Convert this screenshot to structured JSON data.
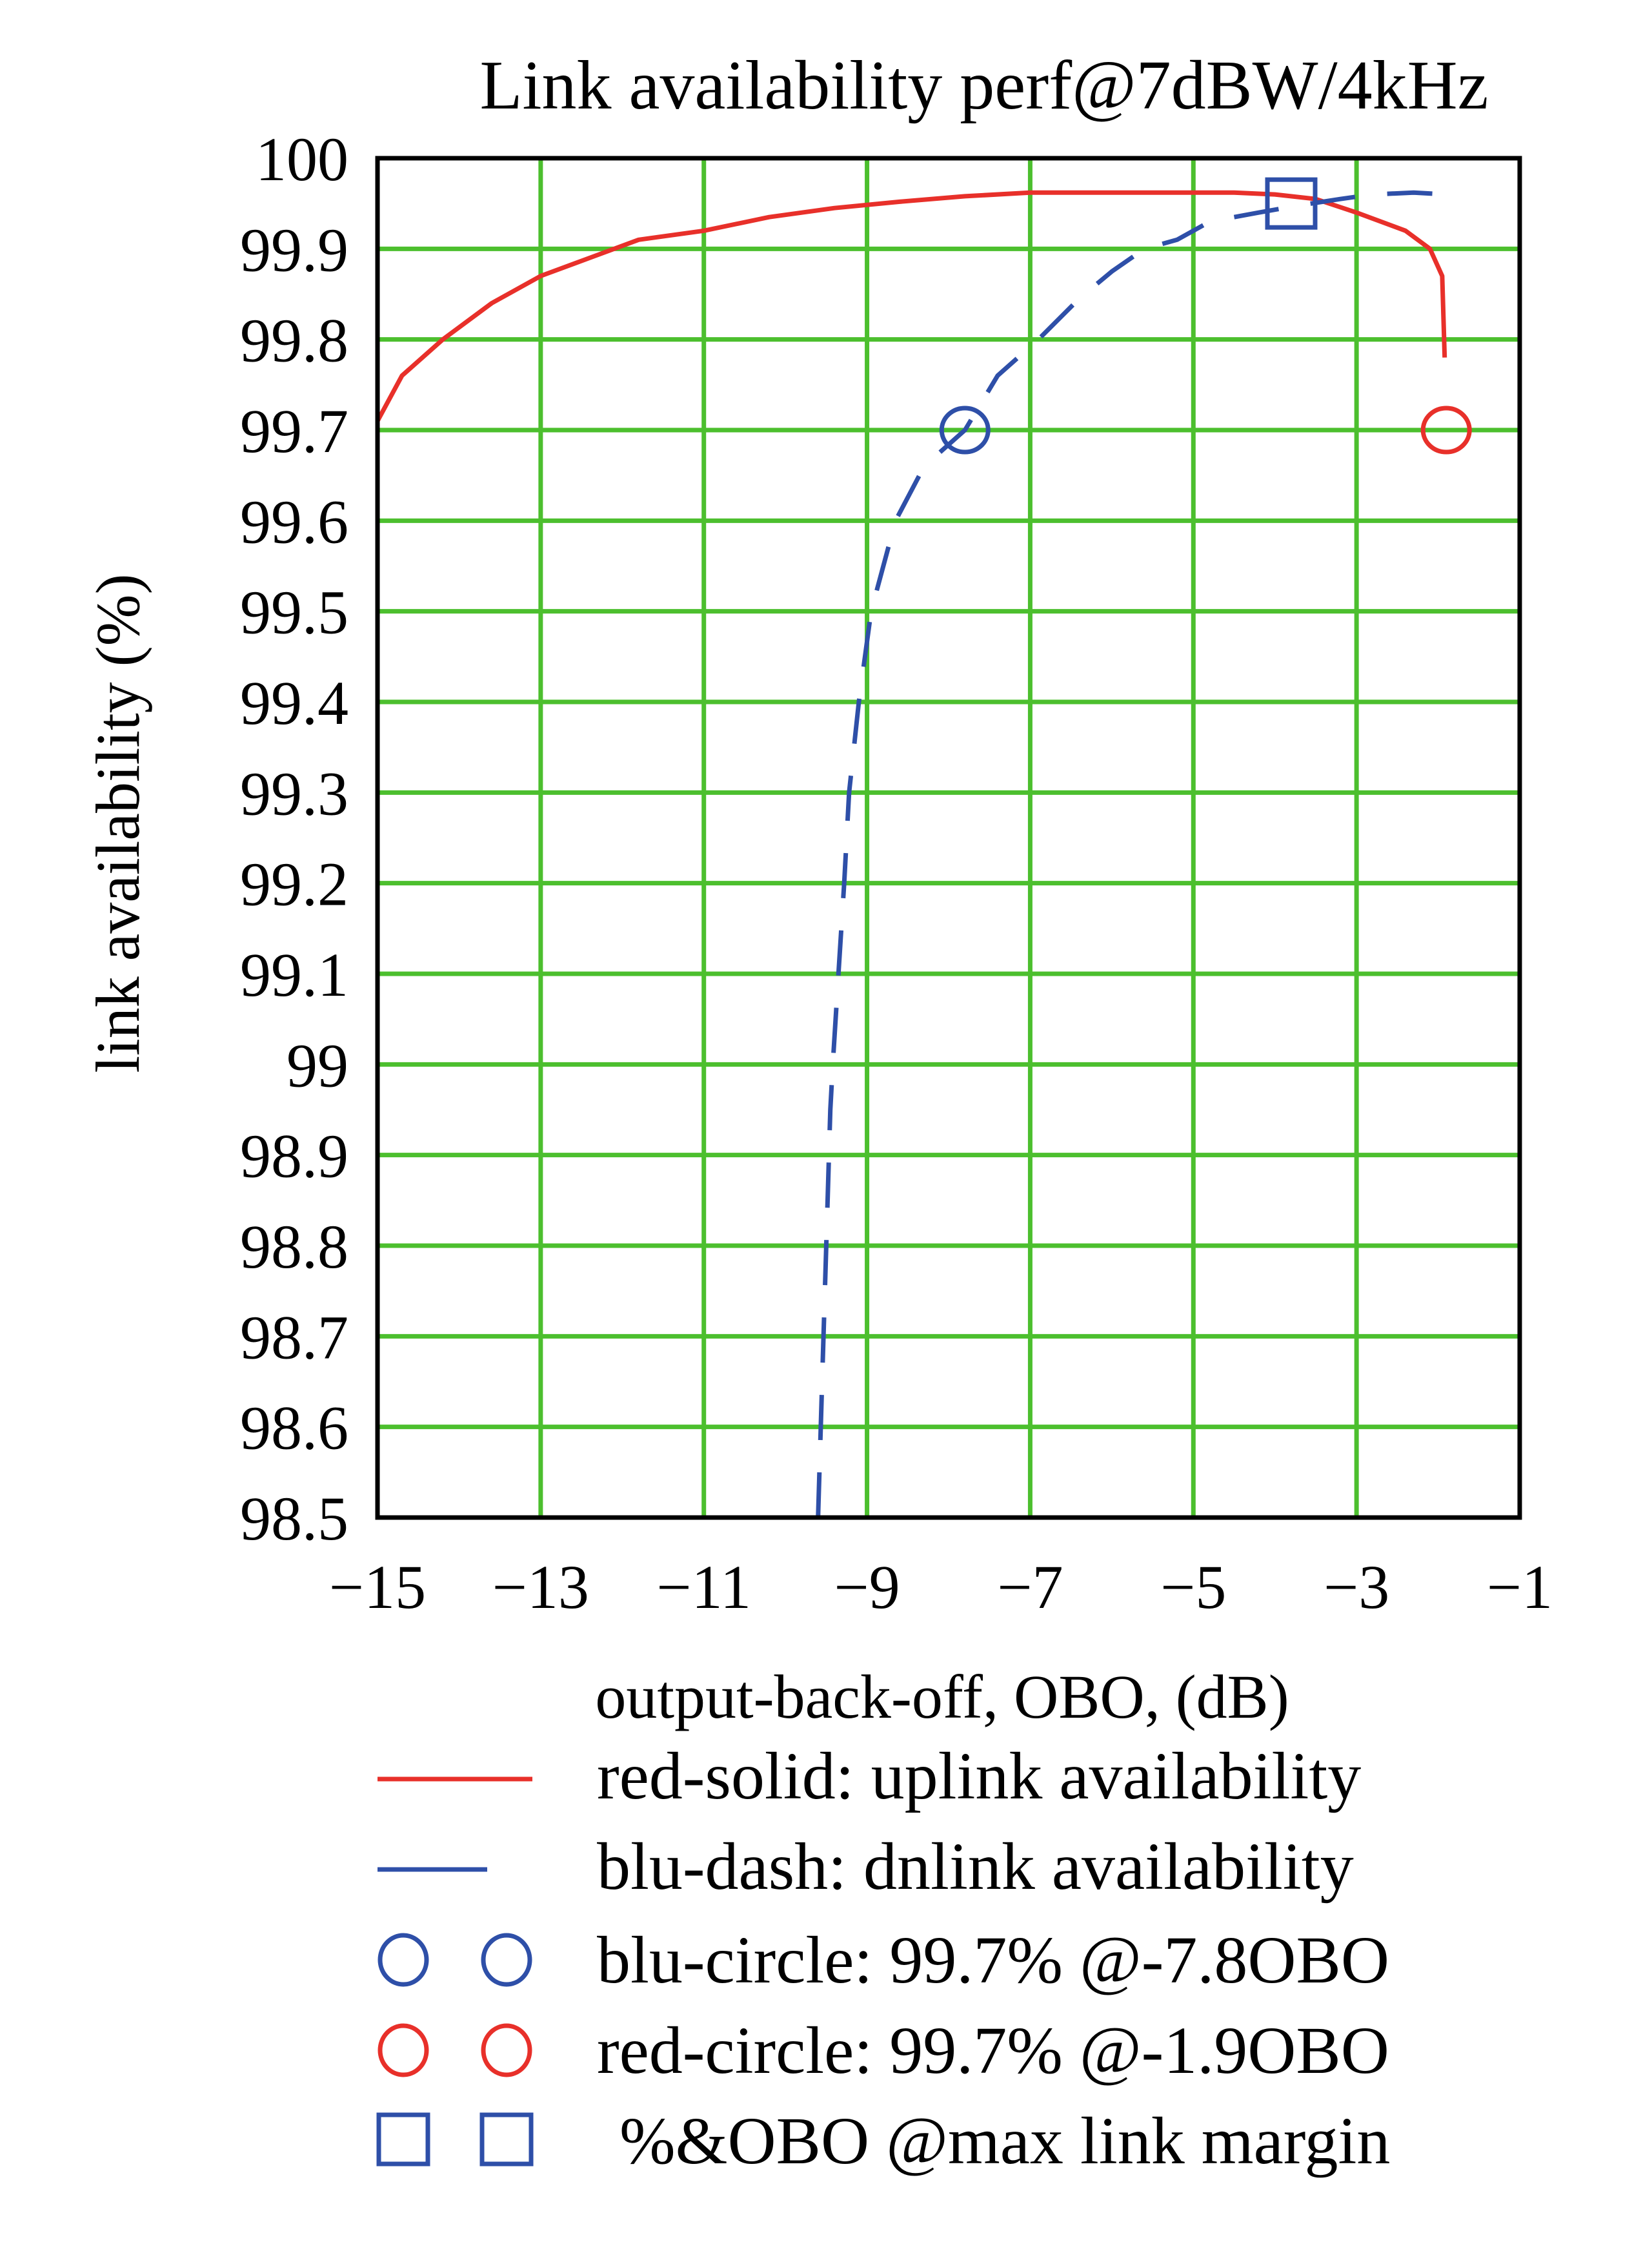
{
  "chart_data": {
    "type": "line",
    "title": "Link availability perf@7dBW/4kHz",
    "xlabel": "output-back-off, OBO, (dB)",
    "ylabel": "link availability (%)",
    "xlim": [
      -15,
      -1
    ],
    "ylim": [
      98.5,
      100
    ],
    "x_ticks": [
      -15,
      -13,
      -11,
      -9,
      -7,
      -5,
      -3,
      -1
    ],
    "x_tick_labels": [
      "−15",
      "−13",
      "−11",
      "−9",
      "−7",
      "−5",
      "−3",
      "−1"
    ],
    "y_ticks": [
      100,
      99.9,
      99.8,
      99.7,
      99.6,
      99.5,
      99.4,
      99.3,
      99.2,
      99.1,
      99,
      98.9,
      98.8,
      98.7,
      98.6,
      98.5
    ],
    "y_tick_labels": [
      "100",
      "99.9",
      "99.8",
      "99.7",
      "99.6",
      "99.5",
      "99.4",
      "99.3",
      "99.2",
      "99.1",
      "99",
      "98.9",
      "98.8",
      "98.7",
      "98.6",
      "98.5"
    ],
    "grid": true,
    "series": [
      {
        "name": "red-solid: uplink availability",
        "color": "#e8302a",
        "style": "solid",
        "points": [
          [
            -15,
            99.71
          ],
          [
            -14.7,
            99.76
          ],
          [
            -14.2,
            99.8
          ],
          [
            -13.6,
            99.84
          ],
          [
            -13,
            99.87
          ],
          [
            -12.4,
            99.89
          ],
          [
            -11.8,
            99.91
          ],
          [
            -11,
            99.92
          ],
          [
            -10.2,
            99.935
          ],
          [
            -9.4,
            99.945
          ],
          [
            -8.6,
            99.952
          ],
          [
            -7.8,
            99.958
          ],
          [
            -7,
            99.962
          ],
          [
            -5.5,
            99.962
          ],
          [
            -4.5,
            99.962
          ],
          [
            -4,
            99.96
          ],
          [
            -3.5,
            99.955
          ],
          [
            -3,
            99.94
          ],
          [
            -2.4,
            99.92
          ],
          [
            -2.1,
            99.9
          ],
          [
            -1.95,
            99.87
          ],
          [
            -1.92,
            99.78
          ]
        ]
      },
      {
        "name": "blu-dash: dnlink availability",
        "color": "#2e4fa8",
        "style": "dashed",
        "points": [
          [
            -9.6,
            98.5
          ],
          [
            -9.55,
            98.65
          ],
          [
            -9.5,
            98.8
          ],
          [
            -9.45,
            98.95
          ],
          [
            -9.42,
            99.0
          ],
          [
            -9.35,
            99.1
          ],
          [
            -9.28,
            99.2
          ],
          [
            -9.22,
            99.3
          ],
          [
            -9.1,
            99.4
          ],
          [
            -8.95,
            99.5
          ],
          [
            -8.65,
            99.6
          ],
          [
            -8.3,
            99.66
          ],
          [
            -7.8,
            99.7
          ],
          [
            -7.4,
            99.76
          ],
          [
            -6.9,
            99.8
          ],
          [
            -6.4,
            99.845
          ],
          [
            -6.0,
            99.875
          ],
          [
            -5.6,
            99.9
          ],
          [
            -5.2,
            99.91
          ],
          [
            -4.8,
            99.93
          ],
          [
            -4.2,
            99.94
          ],
          [
            -3.7,
            99.948
          ],
          [
            -3.2,
            99.955
          ],
          [
            -2.8,
            99.96
          ],
          [
            -2.3,
            99.962
          ],
          [
            -1.9,
            99.96
          ]
        ]
      }
    ],
    "markers": [
      {
        "name": "blu-circle",
        "shape": "circle",
        "color": "#2e4fa8",
        "x": -7.8,
        "y": 99.7
      },
      {
        "name": "red-circle",
        "shape": "circle",
        "color": "#e8302a",
        "x": -1.9,
        "y": 99.7
      },
      {
        "name": "max-link-margin",
        "shape": "square",
        "color": "#2e4fa8",
        "x": -3.8,
        "y": 99.95
      }
    ],
    "legend": {
      "placement": "bottom",
      "entries": [
        {
          "label": "red-solid: uplink availability",
          "symbol": "line-solid",
          "color": "#e8302a"
        },
        {
          "label": "blu-dash: dnlink availability",
          "symbol": "line-dash",
          "color": "#2e4fa8"
        },
        {
          "label": "blu-circle: 99.7% @-7.8OBO",
          "symbol": "circle",
          "color": "#2e4fa8"
        },
        {
          "label": "red-circle: 99.7% @-1.9OBO",
          "symbol": "circle",
          "color": "#e8302a"
        },
        {
          "label": "%&OBO @max link margin",
          "symbol": "square",
          "color": "#2e4fa8"
        }
      ]
    },
    "colors": {
      "grid": "#4cbf2e",
      "frame": "#000000"
    }
  }
}
